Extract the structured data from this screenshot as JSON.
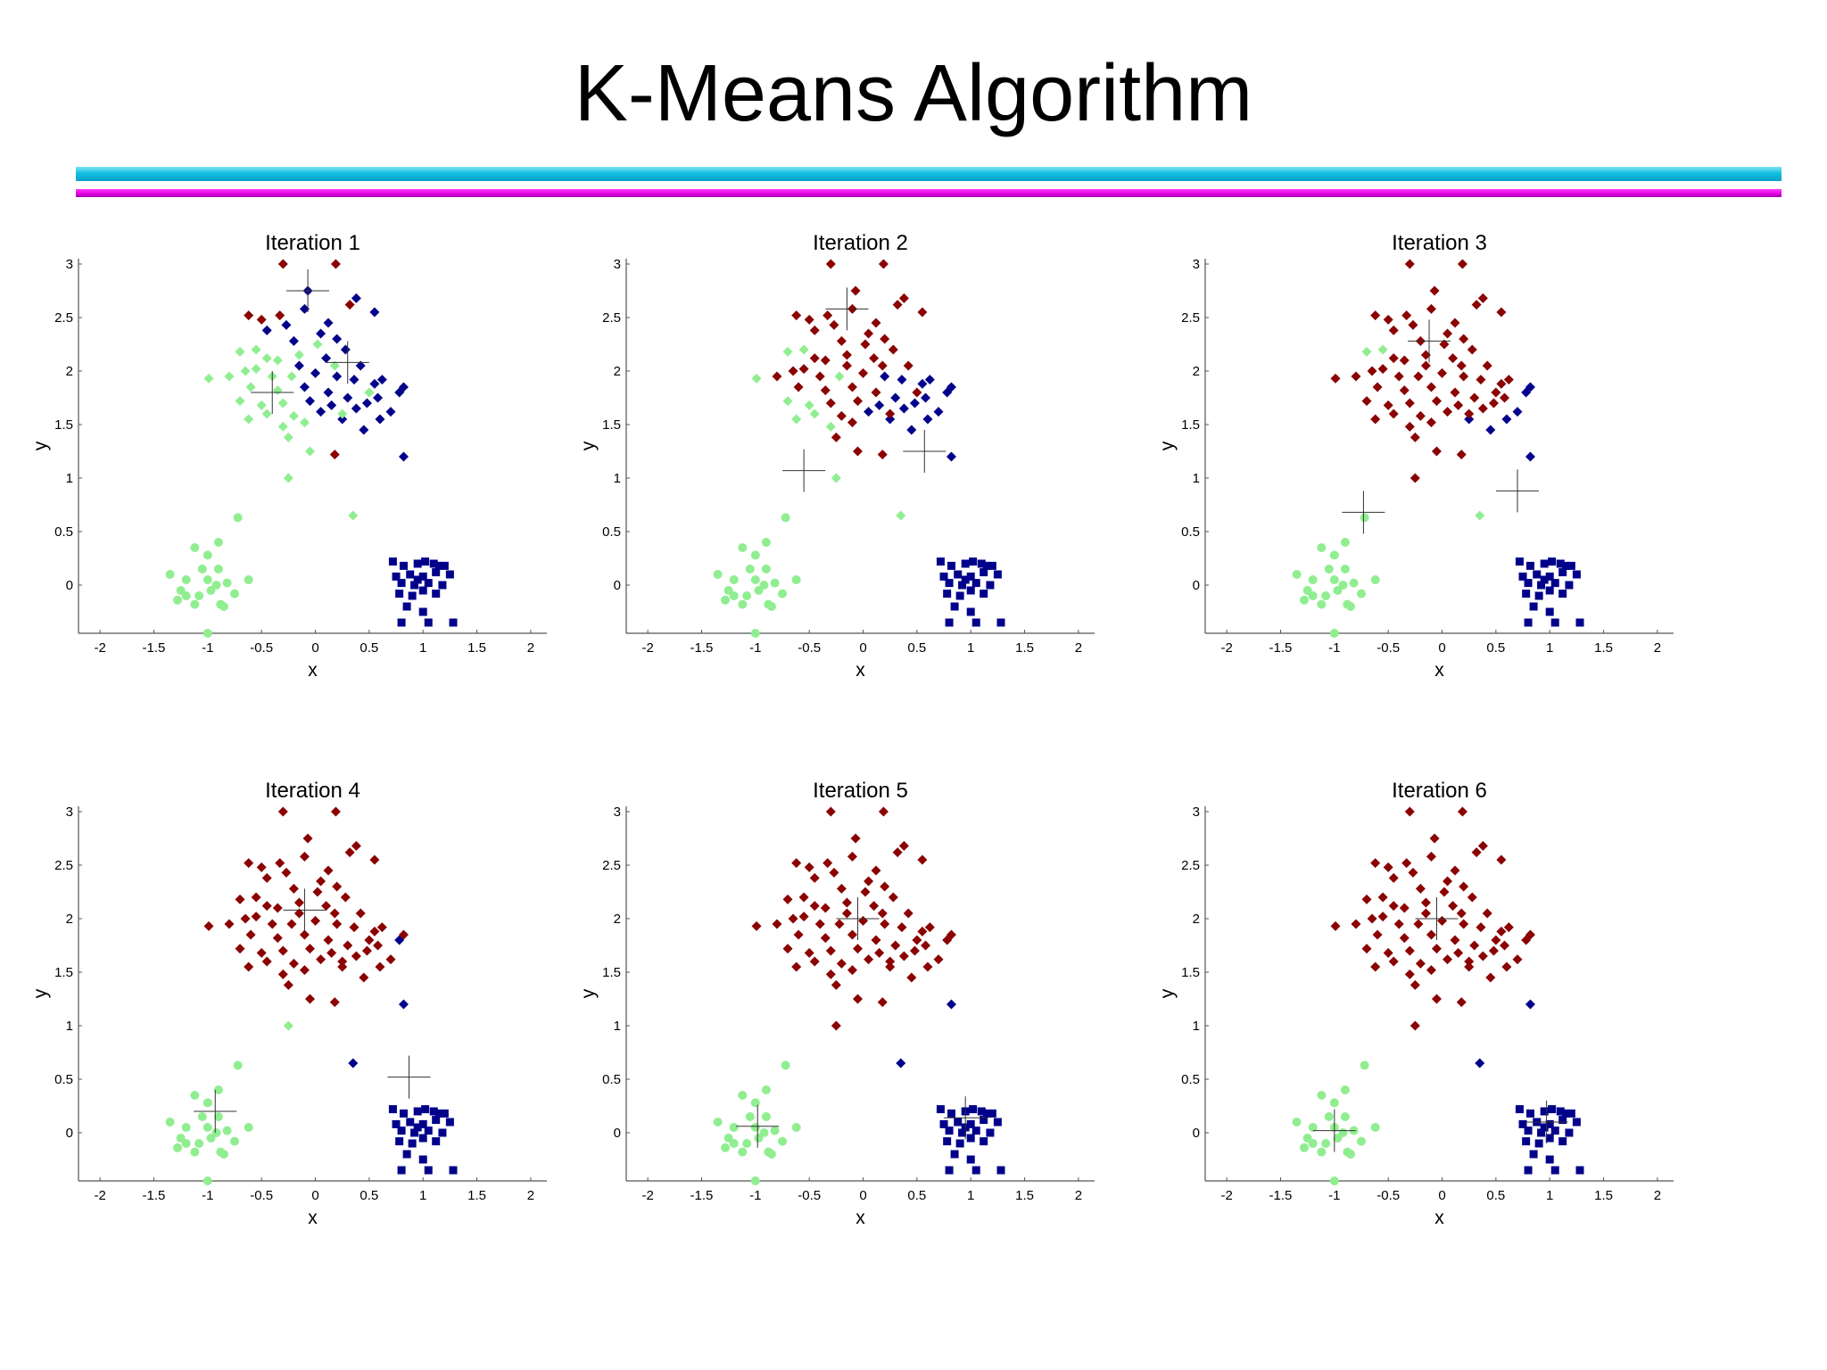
{
  "slide": {
    "title": "K-Means Algorithm"
  },
  "colors": {
    "cluster_red": "#8b0000",
    "cluster_blue": "#00008b",
    "cluster_green": "#90ee90",
    "title_bar_cyan": "#11c0e0",
    "title_bar_magenta": "#e000e0"
  },
  "chart_data": {
    "type": "scatter",
    "description_layout": "2x3 grid of subplots",
    "xlabel": "x",
    "ylabel": "y",
    "xlim": [
      -2.2,
      2.15
    ],
    "ylim": [
      -0.45,
      3.05
    ],
    "xticks": [
      -2,
      -1.5,
      -1,
      -0.5,
      0,
      0.5,
      1,
      1.5,
      2
    ],
    "xtick_labels": [
      "-2",
      "-1.5",
      "-1",
      "-0.5",
      "0",
      "0.5",
      "1",
      "1.5",
      "2"
    ],
    "yticks": [
      0,
      0.5,
      1,
      1.5,
      2,
      2.5,
      3
    ],
    "ytick_labels": [
      "0",
      "0.5",
      "1",
      "1.5",
      "2",
      "2.5",
      "3"
    ],
    "points": [
      [
        -0.3,
        3.0
      ],
      [
        0.19,
        3.0
      ],
      [
        -0.07,
        2.75
      ],
      [
        0.38,
        2.68
      ],
      [
        0.55,
        2.55
      ],
      [
        -0.62,
        2.52
      ],
      [
        -0.5,
        2.48
      ],
      [
        -0.33,
        2.52
      ],
      [
        -0.27,
        2.43
      ],
      [
        0.12,
        2.45
      ],
      [
        0.32,
        2.62
      ],
      [
        -0.1,
        2.58
      ],
      [
        0.2,
        2.3
      ],
      [
        -0.45,
        2.38
      ],
      [
        0.05,
        2.35
      ],
      [
        0.28,
        2.2
      ],
      [
        -0.2,
        2.28
      ],
      [
        -0.35,
        2.1
      ],
      [
        -0.15,
        2.05
      ],
      [
        0.1,
        2.12
      ],
      [
        0.42,
        2.05
      ],
      [
        -0.55,
        2.2
      ],
      [
        -0.7,
        2.18
      ],
      [
        -0.55,
        2.02
      ],
      [
        -0.4,
        1.95
      ],
      [
        -0.22,
        1.95
      ],
      [
        0.0,
        1.98
      ],
      [
        0.2,
        1.95
      ],
      [
        0.36,
        1.92
      ],
      [
        -0.6,
        1.85
      ],
      [
        -0.35,
        1.82
      ],
      [
        -0.1,
        1.85
      ],
      [
        0.12,
        1.8
      ],
      [
        0.3,
        1.75
      ],
      [
        0.55,
        1.88
      ],
      [
        0.62,
        1.92
      ],
      [
        0.78,
        1.8
      ],
      [
        0.82,
        1.85
      ],
      [
        -0.7,
        1.72
      ],
      [
        -0.5,
        1.68
      ],
      [
        -0.3,
        1.7
      ],
      [
        -0.05,
        1.72
      ],
      [
        0.15,
        1.68
      ],
      [
        0.38,
        1.65
      ],
      [
        0.48,
        1.7
      ],
      [
        0.58,
        1.75
      ],
      [
        0.7,
        1.62
      ],
      [
        -0.45,
        1.6
      ],
      [
        -0.2,
        1.58
      ],
      [
        0.05,
        1.62
      ],
      [
        0.25,
        1.55
      ],
      [
        0.45,
        1.45
      ],
      [
        -0.62,
        1.55
      ],
      [
        -0.3,
        1.48
      ],
      [
        -0.1,
        1.52
      ],
      [
        0.6,
        1.55
      ],
      [
        -0.25,
        1.38
      ],
      [
        -0.05,
        1.25
      ],
      [
        0.18,
        1.22
      ],
      [
        0.82,
        1.2
      ],
      [
        -0.25,
        1.0
      ],
      [
        -0.99,
        1.93
      ],
      [
        -0.65,
        2.0
      ],
      [
        -0.15,
        2.15
      ],
      [
        0.02,
        2.25
      ],
      [
        -0.45,
        2.12
      ],
      [
        0.18,
        2.05
      ],
      [
        0.5,
        1.8
      ],
      [
        -0.8,
        1.95
      ],
      [
        0.25,
        1.6
      ],
      [
        0.35,
        0.65
      ],
      [
        -0.72,
        0.63
      ],
      [
        -0.9,
        0.4
      ],
      [
        -1.12,
        0.35
      ],
      [
        -1.0,
        0.28
      ],
      [
        -0.9,
        0.15
      ],
      [
        -1.05,
        0.15
      ],
      [
        -1.2,
        0.05
      ],
      [
        -1.0,
        0.05
      ],
      [
        -0.92,
        0.0
      ],
      [
        -1.35,
        0.1
      ],
      [
        -1.25,
        -0.05
      ],
      [
        -0.97,
        -0.05
      ],
      [
        -1.08,
        -0.1
      ],
      [
        -1.2,
        -0.1
      ],
      [
        -0.82,
        0.02
      ],
      [
        -0.75,
        -0.08
      ],
      [
        -1.12,
        -0.18
      ],
      [
        -0.88,
        -0.18
      ],
      [
        -0.62,
        0.05
      ],
      [
        -1.0,
        -0.45
      ],
      [
        -1.28,
        -0.14
      ],
      [
        -0.85,
        -0.2
      ],
      [
        0.72,
        0.22
      ],
      [
        0.82,
        0.18
      ],
      [
        0.95,
        0.2
      ],
      [
        1.02,
        0.22
      ],
      [
        1.1,
        0.2
      ],
      [
        1.2,
        0.18
      ],
      [
        0.75,
        0.08
      ],
      [
        0.88,
        0.1
      ],
      [
        1.0,
        0.08
      ],
      [
        1.12,
        0.12
      ],
      [
        1.25,
        0.1
      ],
      [
        0.8,
        0.02
      ],
      [
        0.92,
        0.0
      ],
      [
        1.05,
        0.02
      ],
      [
        1.18,
        0.0
      ],
      [
        0.78,
        -0.08
      ],
      [
        0.9,
        -0.1
      ],
      [
        1.0,
        -0.05
      ],
      [
        1.12,
        -0.08
      ],
      [
        0.85,
        -0.2
      ],
      [
        1.0,
        -0.25
      ],
      [
        0.8,
        -0.35
      ],
      [
        1.05,
        -0.35
      ],
      [
        1.28,
        -0.35
      ],
      [
        0.95,
        0.05
      ],
      [
        1.15,
        0.18
      ]
    ],
    "panels": [
      {
        "title": "Iteration 1",
        "centroids": [
          [
            -0.07,
            2.75
          ],
          [
            0.3,
            2.08
          ],
          [
            -0.4,
            1.8
          ]
        ],
        "green_ids": [
          61,
          62,
          63,
          64,
          65,
          66,
          67,
          68,
          69,
          70,
          21,
          22,
          23,
          24,
          25,
          29,
          30,
          38,
          39,
          40,
          47,
          48,
          52,
          53,
          54,
          56,
          57,
          60,
          17
        ],
        "blue_ids": [
          2,
          3,
          4,
          8,
          9,
          11,
          12,
          13,
          14,
          15,
          16,
          18,
          19,
          20,
          26,
          27,
          28,
          31,
          32,
          33,
          34,
          35,
          36,
          37,
          41,
          42,
          43,
          44,
          45,
          46,
          49,
          50,
          51,
          55,
          59
        ],
        "red_ids": []
      },
      {
        "title": "Iteration 2",
        "centroids": [
          [
            -0.15,
            2.58
          ],
          [
            -0.55,
            1.07
          ],
          [
            0.57,
            1.25
          ]
        ],
        "green_ids": [
          70,
          21,
          22,
          38,
          47,
          52,
          53,
          60,
          25,
          39,
          61
        ],
        "blue_ids": [
          27,
          28,
          33,
          34,
          35,
          36,
          37,
          42,
          43,
          44,
          45,
          46,
          49,
          50,
          51,
          55,
          59
        ],
        "red_ids": []
      },
      {
        "title": "Iteration 3",
        "centroids": [
          [
            -0.12,
            2.28
          ],
          [
            -0.73,
            0.68
          ],
          [
            0.7,
            0.88
          ]
        ],
        "green_ids": [
          70,
          21,
          22
        ],
        "blue_ids": [
          37,
          46,
          50,
          51,
          55,
          59,
          36
        ],
        "red_ids": []
      },
      {
        "title": "Iteration 4",
        "centroids": [
          [
            -0.1,
            2.08
          ],
          [
            -0.93,
            0.2
          ],
          [
            0.87,
            0.52
          ]
        ],
        "green_ids": [
          60
        ],
        "blue_ids": [
          70,
          59,
          36
        ],
        "red_ids": []
      },
      {
        "title": "Iteration 5",
        "centroids": [
          [
            -0.05,
            2.0
          ],
          [
            -0.98,
            0.06
          ],
          [
            0.95,
            0.14
          ]
        ],
        "green_ids": [],
        "blue_ids": [
          70,
          59
        ],
        "red_ids": [
          60
        ]
      },
      {
        "title": "Iteration 6",
        "centroids": [
          [
            -0.05,
            2.0
          ],
          [
            -1.0,
            0.02
          ],
          [
            0.97,
            0.1
          ]
        ],
        "green_ids": [],
        "blue_ids": [
          70,
          59
        ],
        "red_ids": [
          60
        ]
      }
    ]
  }
}
